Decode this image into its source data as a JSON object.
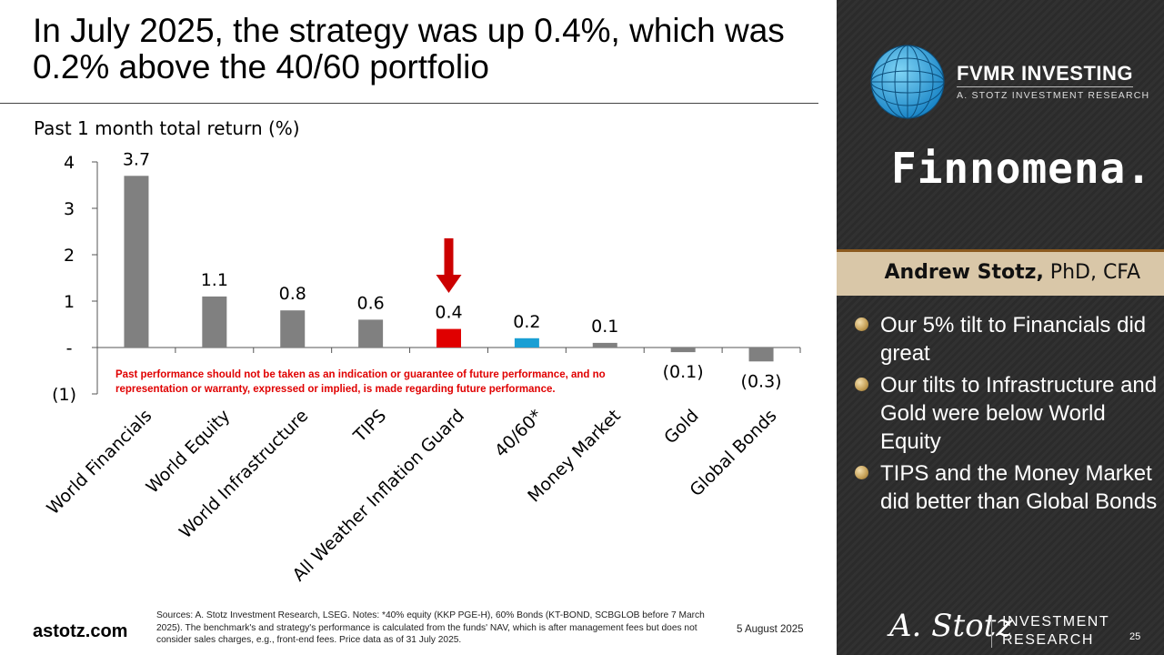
{
  "title": "In July 2025, the strategy was up 0.4%, which was 0.2% above the 40/60 portfolio",
  "chart_data": {
    "type": "bar",
    "title": "Past 1 month total return (%)",
    "categories": [
      "World Financials",
      "World Equity",
      "World Infrastructure",
      "TIPS",
      "All Weather Inflation Guard",
      "40/60*",
      "Money Market",
      "Gold",
      "Global Bonds"
    ],
    "values": [
      3.7,
      1.1,
      0.8,
      0.6,
      0.4,
      0.2,
      0.1,
      -0.1,
      -0.3
    ],
    "data_labels": [
      "3.7",
      "1.1",
      "0.8",
      "0.6",
      "0.4",
      "0.2",
      "0.1",
      "(0.1)",
      "(0.3)"
    ],
    "ylim": [
      -1,
      4
    ],
    "yticks": [
      4,
      3,
      2,
      1,
      0,
      -1
    ],
    "ytick_labels": [
      "4",
      "3",
      "2",
      "1",
      "-",
      "(1)"
    ],
    "bar_colors": [
      "#808080",
      "#808080",
      "#808080",
      "#808080",
      "#e00000",
      "#1a9fd4",
      "#808080",
      "#808080",
      "#808080"
    ],
    "highlight_arrow_category": "All Weather Inflation Guard",
    "arrow_color": "#cc0000"
  },
  "disclaimer": "Past performance should not be taken as an indication or guarantee of future performance, and no representation or warranty, expressed or implied, is made regarding future performance.",
  "footer": {
    "site": "astotz.com",
    "sources": "Sources: A. Stotz Investment Research, LSEG. Notes: *40% equity (KKP PGE-H), 60% Bonds (KT-BOND, SCBGLOB before 7 March 2025). The benchmark's and strategy's performance is calculated from the funds' NAV, which is after management fees but does not consider sales charges, e.g., front-end fees. Price data as of 31 July 2025.",
    "date": "5 August 2025",
    "page_number": "25"
  },
  "panel": {
    "brand_name": "FVMR INVESTING",
    "brand_sub": "A. STOTZ INVESTMENT RESEARCH",
    "partner": "Finnomena.",
    "author_name": "Andrew Stotz,",
    "author_credentials": " PhD, CFA",
    "bullets": [
      "Our 5% tilt to Financials did great",
      "Our tilts to Infrastructure and Gold were below World Equity",
      "TIPS and the Money Market did better than Global Bonds"
    ],
    "signature": "A. Stotz",
    "ir_line1": "INVESTMENT",
    "ir_line2": "RESEARCH"
  }
}
